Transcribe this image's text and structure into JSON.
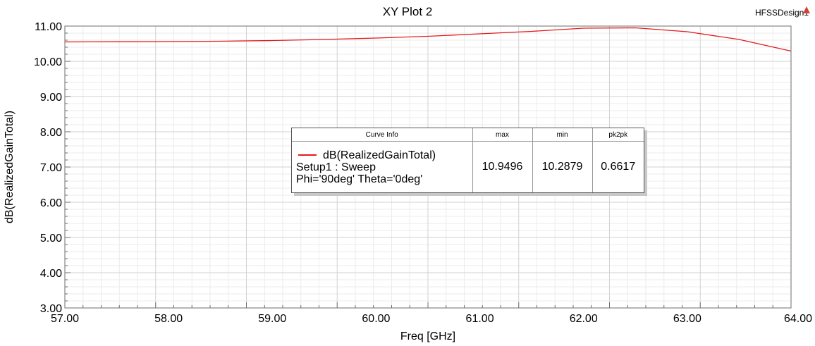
{
  "chart_data": {
    "type": "line",
    "title": "XY Plot 2",
    "design_name": "HFSSDesign1",
    "xlabel": "Freq [GHz]",
    "ylabel": "dB(RealizedGainTotal)",
    "xlim": [
      57.0,
      64.0
    ],
    "ylim": [
      3.0,
      11.0
    ],
    "x_ticks": [
      "57.00",
      "58.00",
      "59.00",
      "60.00",
      "61.00",
      "62.00",
      "63.00",
      "64.00"
    ],
    "y_ticks": [
      "3.00",
      "4.00",
      "5.00",
      "6.00",
      "7.00",
      "8.00",
      "9.00",
      "10.00",
      "11.00"
    ],
    "grid": true,
    "series": [
      {
        "name": "dB(RealizedGainTotal)",
        "color": "#e31a1c",
        "x": [
          57.0,
          57.5,
          58.0,
          58.5,
          59.0,
          59.5,
          60.0,
          60.5,
          61.0,
          61.5,
          62.0,
          62.5,
          63.0,
          63.5,
          64.0
        ],
        "y": [
          10.55,
          10.555,
          10.56,
          10.57,
          10.59,
          10.62,
          10.66,
          10.71,
          10.78,
          10.85,
          10.94,
          10.95,
          10.84,
          10.62,
          10.29
        ]
      }
    ],
    "legend": {
      "position": "center",
      "headers": [
        "Curve Info",
        "max",
        "min",
        "pk2pk"
      ],
      "rows": [
        {
          "curve_lines": [
            "dB(RealizedGainTotal)",
            "Setup1 : Sweep",
            "Phi='90deg' Theta='0deg'"
          ],
          "max": "10.9496",
          "min": "10.2879",
          "pk2pk": "0.6617"
        }
      ]
    }
  }
}
